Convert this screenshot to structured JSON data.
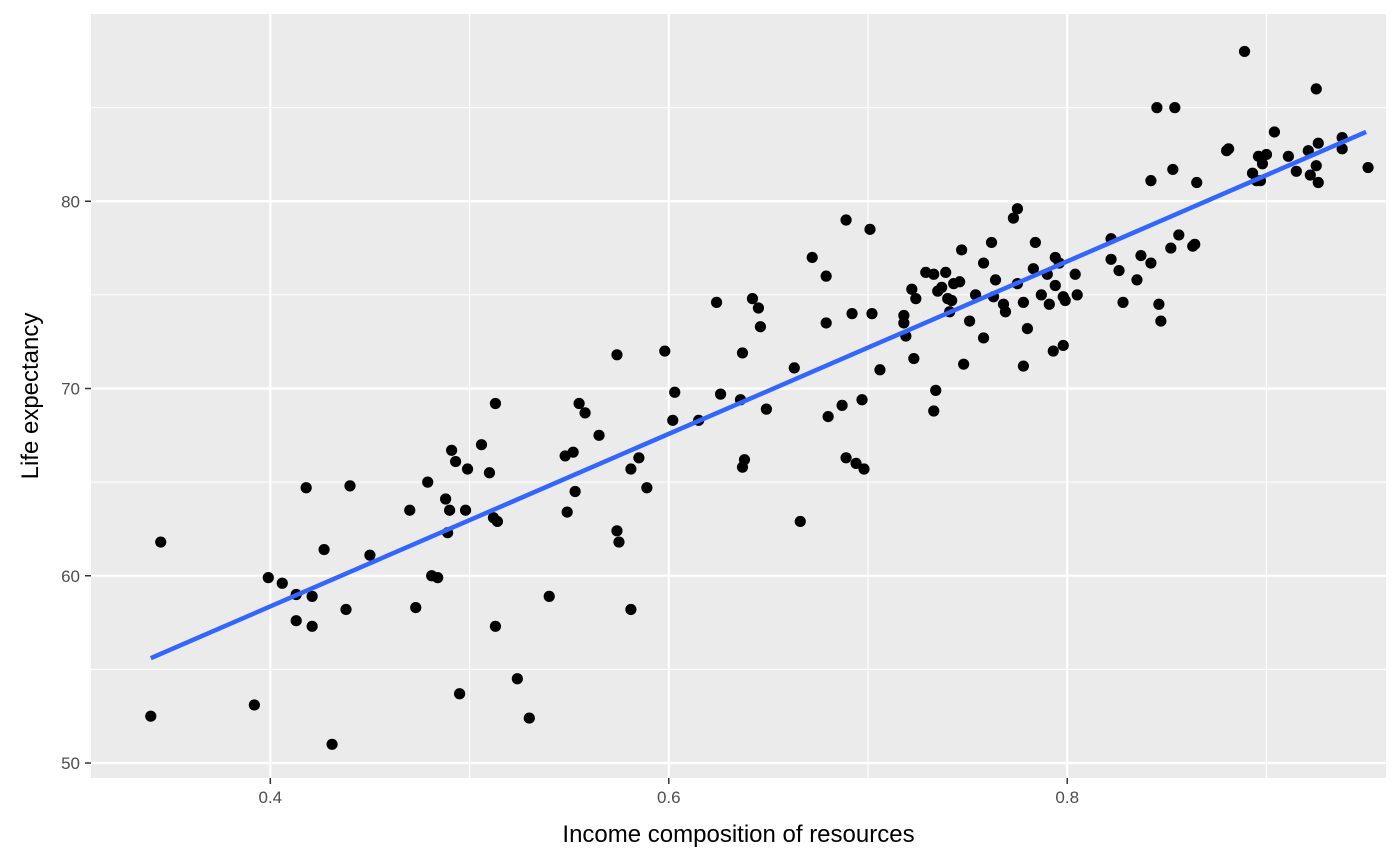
{
  "chart_data": {
    "type": "scatter",
    "title": "",
    "xlabel": "Income composition of resources",
    "ylabel": "Life expectancy",
    "xlim": [
      0.31,
      0.96
    ],
    "ylim": [
      49.2,
      90.0
    ],
    "x_ticks": [
      0.4,
      0.6,
      0.8
    ],
    "x_tick_labels": [
      "0.4",
      "0.6",
      "0.8"
    ],
    "x_minor_ticks": [
      0.5,
      0.7,
      0.9
    ],
    "y_ticks": [
      50,
      60,
      70,
      80
    ],
    "y_tick_labels": [
      "50",
      "60",
      "70",
      "80"
    ],
    "y_minor_ticks": [
      55,
      65,
      75,
      85
    ],
    "grid": true,
    "legend": "none",
    "colors": {
      "panel": "#ebebeb",
      "grid": "#ffffff",
      "points": "#000000",
      "trend": "#3366ff"
    },
    "trend_line": {
      "method": "linear",
      "x": [
        0.34,
        0.95
      ],
      "y": [
        55.6,
        83.7
      ]
    },
    "points": [
      [
        0.34,
        52.5
      ],
      [
        0.345,
        61.8
      ],
      [
        0.392,
        53.1
      ],
      [
        0.399,
        59.9
      ],
      [
        0.406,
        59.6
      ],
      [
        0.413,
        59.0
      ],
      [
        0.413,
        57.6
      ],
      [
        0.418,
        64.7
      ],
      [
        0.421,
        58.9
      ],
      [
        0.421,
        57.3
      ],
      [
        0.427,
        61.4
      ],
      [
        0.431,
        51.0
      ],
      [
        0.438,
        58.2
      ],
      [
        0.44,
        64.8
      ],
      [
        0.45,
        61.1
      ],
      [
        0.47,
        63.5
      ],
      [
        0.473,
        58.3
      ],
      [
        0.479,
        65.0
      ],
      [
        0.481,
        60.0
      ],
      [
        0.484,
        59.9
      ],
      [
        0.488,
        64.1
      ],
      [
        0.489,
        62.3
      ],
      [
        0.49,
        63.5
      ],
      [
        0.491,
        66.7
      ],
      [
        0.493,
        66.1
      ],
      [
        0.495,
        53.7
      ],
      [
        0.498,
        63.5
      ],
      [
        0.499,
        65.7
      ],
      [
        0.506,
        67.0
      ],
      [
        0.51,
        65.5
      ],
      [
        0.512,
        63.1
      ],
      [
        0.513,
        69.2
      ],
      [
        0.513,
        57.3
      ],
      [
        0.514,
        62.9
      ],
      [
        0.524,
        54.5
      ],
      [
        0.53,
        52.4
      ],
      [
        0.54,
        58.9
      ],
      [
        0.548,
        66.4
      ],
      [
        0.549,
        63.4
      ],
      [
        0.552,
        66.6
      ],
      [
        0.553,
        64.5
      ],
      [
        0.555,
        69.2
      ],
      [
        0.558,
        68.7
      ],
      [
        0.565,
        67.5
      ],
      [
        0.574,
        71.8
      ],
      [
        0.574,
        62.4
      ],
      [
        0.575,
        61.8
      ],
      [
        0.581,
        65.7
      ],
      [
        0.581,
        58.2
      ],
      [
        0.585,
        66.3
      ],
      [
        0.589,
        64.7
      ],
      [
        0.598,
        72.0
      ],
      [
        0.602,
        68.3
      ],
      [
        0.603,
        69.8
      ],
      [
        0.615,
        68.3
      ],
      [
        0.624,
        74.6
      ],
      [
        0.626,
        69.7
      ],
      [
        0.636,
        69.4
      ],
      [
        0.637,
        71.9
      ],
      [
        0.637,
        65.8
      ],
      [
        0.638,
        66.2
      ],
      [
        0.642,
        74.8
      ],
      [
        0.645,
        74.3
      ],
      [
        0.646,
        73.3
      ],
      [
        0.649,
        68.9
      ],
      [
        0.663,
        71.1
      ],
      [
        0.666,
        62.9
      ],
      [
        0.672,
        77.0
      ],
      [
        0.679,
        76.0
      ],
      [
        0.679,
        73.5
      ],
      [
        0.68,
        68.5
      ],
      [
        0.687,
        69.1
      ],
      [
        0.689,
        79.0
      ],
      [
        0.689,
        66.3
      ],
      [
        0.692,
        74.0
      ],
      [
        0.694,
        66.0
      ],
      [
        0.697,
        69.4
      ],
      [
        0.698,
        65.7
      ],
      [
        0.701,
        78.5
      ],
      [
        0.702,
        74.0
      ],
      [
        0.706,
        71.0
      ],
      [
        0.718,
        73.9
      ],
      [
        0.718,
        73.5
      ],
      [
        0.719,
        72.8
      ],
      [
        0.722,
        75.3
      ],
      [
        0.723,
        71.6
      ],
      [
        0.724,
        74.8
      ],
      [
        0.729,
        76.2
      ],
      [
        0.733,
        76.1
      ],
      [
        0.733,
        68.8
      ],
      [
        0.734,
        69.9
      ],
      [
        0.735,
        75.2
      ],
      [
        0.737,
        75.4
      ],
      [
        0.739,
        76.2
      ],
      [
        0.74,
        74.8
      ],
      [
        0.741,
        74.1
      ],
      [
        0.742,
        74.7
      ],
      [
        0.743,
        75.6
      ],
      [
        0.746,
        75.7
      ],
      [
        0.747,
        77.4
      ],
      [
        0.748,
        71.3
      ],
      [
        0.751,
        73.6
      ],
      [
        0.754,
        75.0
      ],
      [
        0.758,
        76.7
      ],
      [
        0.758,
        72.7
      ],
      [
        0.762,
        77.8
      ],
      [
        0.763,
        74.9
      ],
      [
        0.764,
        75.8
      ],
      [
        0.768,
        74.5
      ],
      [
        0.769,
        74.1
      ],
      [
        0.773,
        79.1
      ],
      [
        0.775,
        79.6
      ],
      [
        0.775,
        75.6
      ],
      [
        0.778,
        74.6
      ],
      [
        0.778,
        71.2
      ],
      [
        0.78,
        73.2
      ],
      [
        0.783,
        76.4
      ],
      [
        0.784,
        77.8
      ],
      [
        0.787,
        75.0
      ],
      [
        0.79,
        76.1
      ],
      [
        0.791,
        74.5
      ],
      [
        0.793,
        72.0
      ],
      [
        0.794,
        75.5
      ],
      [
        0.794,
        77.0
      ],
      [
        0.796,
        76.7
      ],
      [
        0.798,
        72.3
      ],
      [
        0.798,
        74.9
      ],
      [
        0.799,
        74.7
      ],
      [
        0.804,
        76.1
      ],
      [
        0.805,
        75.0
      ],
      [
        0.822,
        78.0
      ],
      [
        0.822,
        76.9
      ],
      [
        0.826,
        76.3
      ],
      [
        0.828,
        74.6
      ],
      [
        0.835,
        75.8
      ],
      [
        0.837,
        77.1
      ],
      [
        0.842,
        76.7
      ],
      [
        0.842,
        81.1
      ],
      [
        0.845,
        85.0
      ],
      [
        0.846,
        74.5
      ],
      [
        0.847,
        73.6
      ],
      [
        0.852,
        77.5
      ],
      [
        0.853,
        81.7
      ],
      [
        0.854,
        85.0
      ],
      [
        0.856,
        78.2
      ],
      [
        0.863,
        77.6
      ],
      [
        0.864,
        77.7
      ],
      [
        0.865,
        81.0
      ],
      [
        0.88,
        82.7
      ],
      [
        0.881,
        82.8
      ],
      [
        0.889,
        88.0
      ],
      [
        0.893,
        81.5
      ],
      [
        0.895,
        81.1
      ],
      [
        0.896,
        82.4
      ],
      [
        0.897,
        81.1
      ],
      [
        0.898,
        82.0
      ],
      [
        0.9,
        82.5
      ],
      [
        0.904,
        83.7
      ],
      [
        0.911,
        82.4
      ],
      [
        0.915,
        81.6
      ],
      [
        0.921,
        82.7
      ],
      [
        0.922,
        81.4
      ],
      [
        0.925,
        86.0
      ],
      [
        0.925,
        81.9
      ],
      [
        0.926,
        83.1
      ],
      [
        0.926,
        81.0
      ],
      [
        0.938,
        83.4
      ],
      [
        0.938,
        82.8
      ],
      [
        0.951,
        81.8
      ]
    ]
  }
}
